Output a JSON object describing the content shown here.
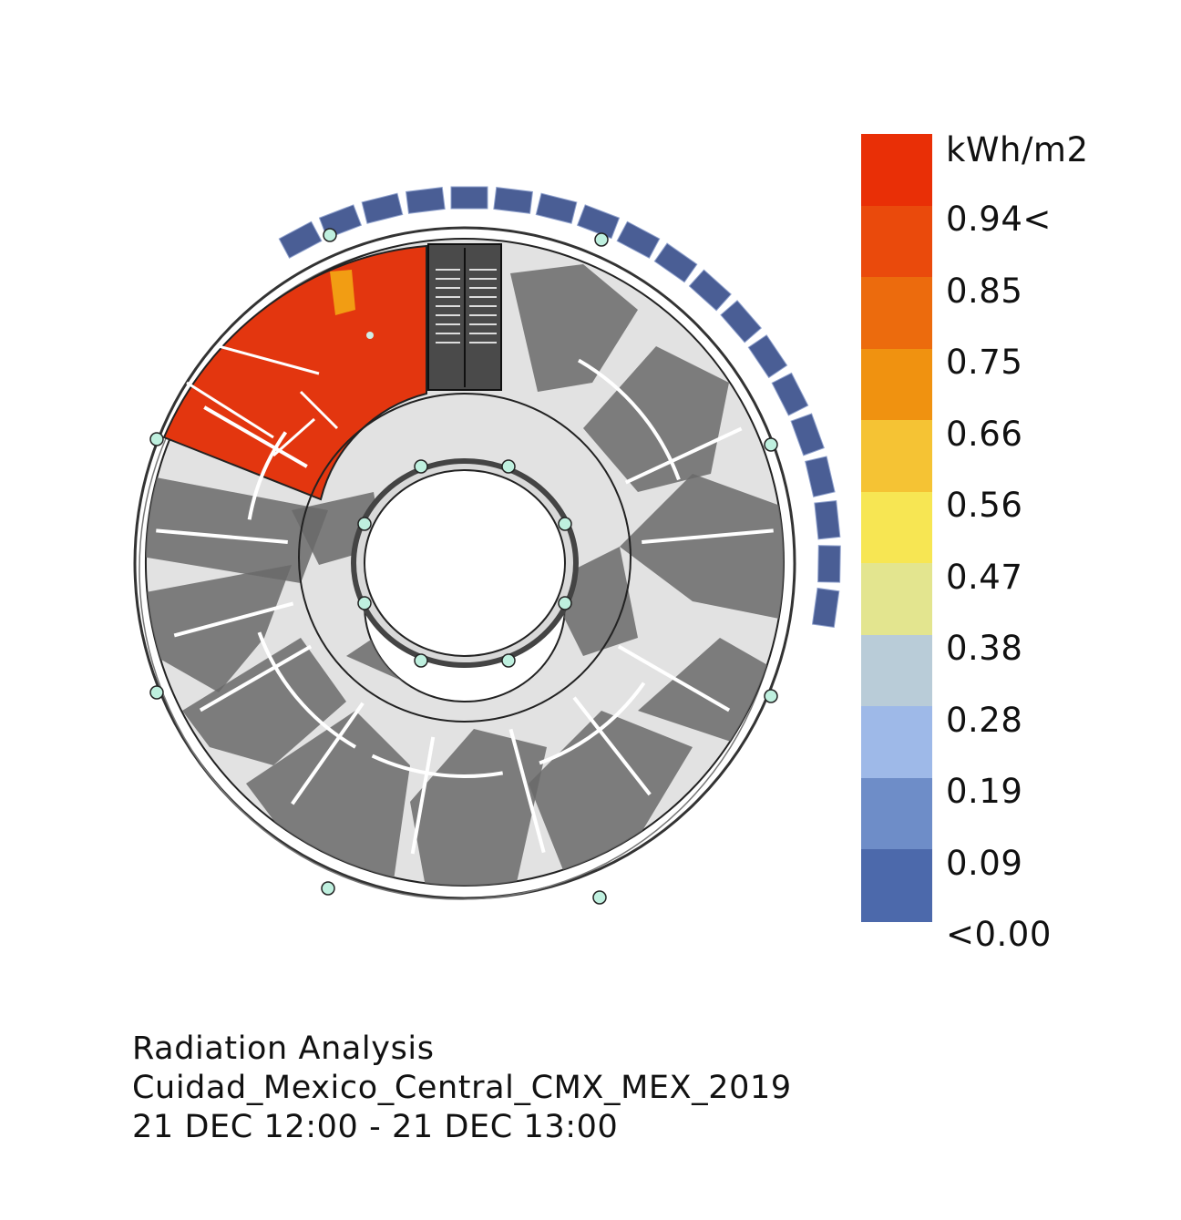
{
  "legend": {
    "unit": "kWh/m2",
    "labels": [
      "0.94<",
      "0.85",
      "0.75",
      "0.66",
      "0.56",
      "0.47",
      "0.38",
      "0.28",
      "0.19",
      "0.09",
      "<0.00"
    ],
    "colors": [
      "#e92f06",
      "#ea4a0c",
      "#ec6b0d",
      "#f09210",
      "#f5c334",
      "#f7e653",
      "#e3e58f",
      "#b9ccd8",
      "#9eb9e8",
      "#6e8dc8",
      "#4c69ab"
    ]
  },
  "caption": {
    "title": "Radiation Analysis",
    "location": "Cuidad_Mexico_Central_CMX_MEX_2019",
    "period": "21 DEC 12:00 - 21 DEC 13:00"
  },
  "plan": {
    "hot_zone_color": "#e3360f",
    "shadow_color": "#6a6a6a",
    "floor_color": "#e2e2e2",
    "panel_color": "#4a5e95"
  }
}
